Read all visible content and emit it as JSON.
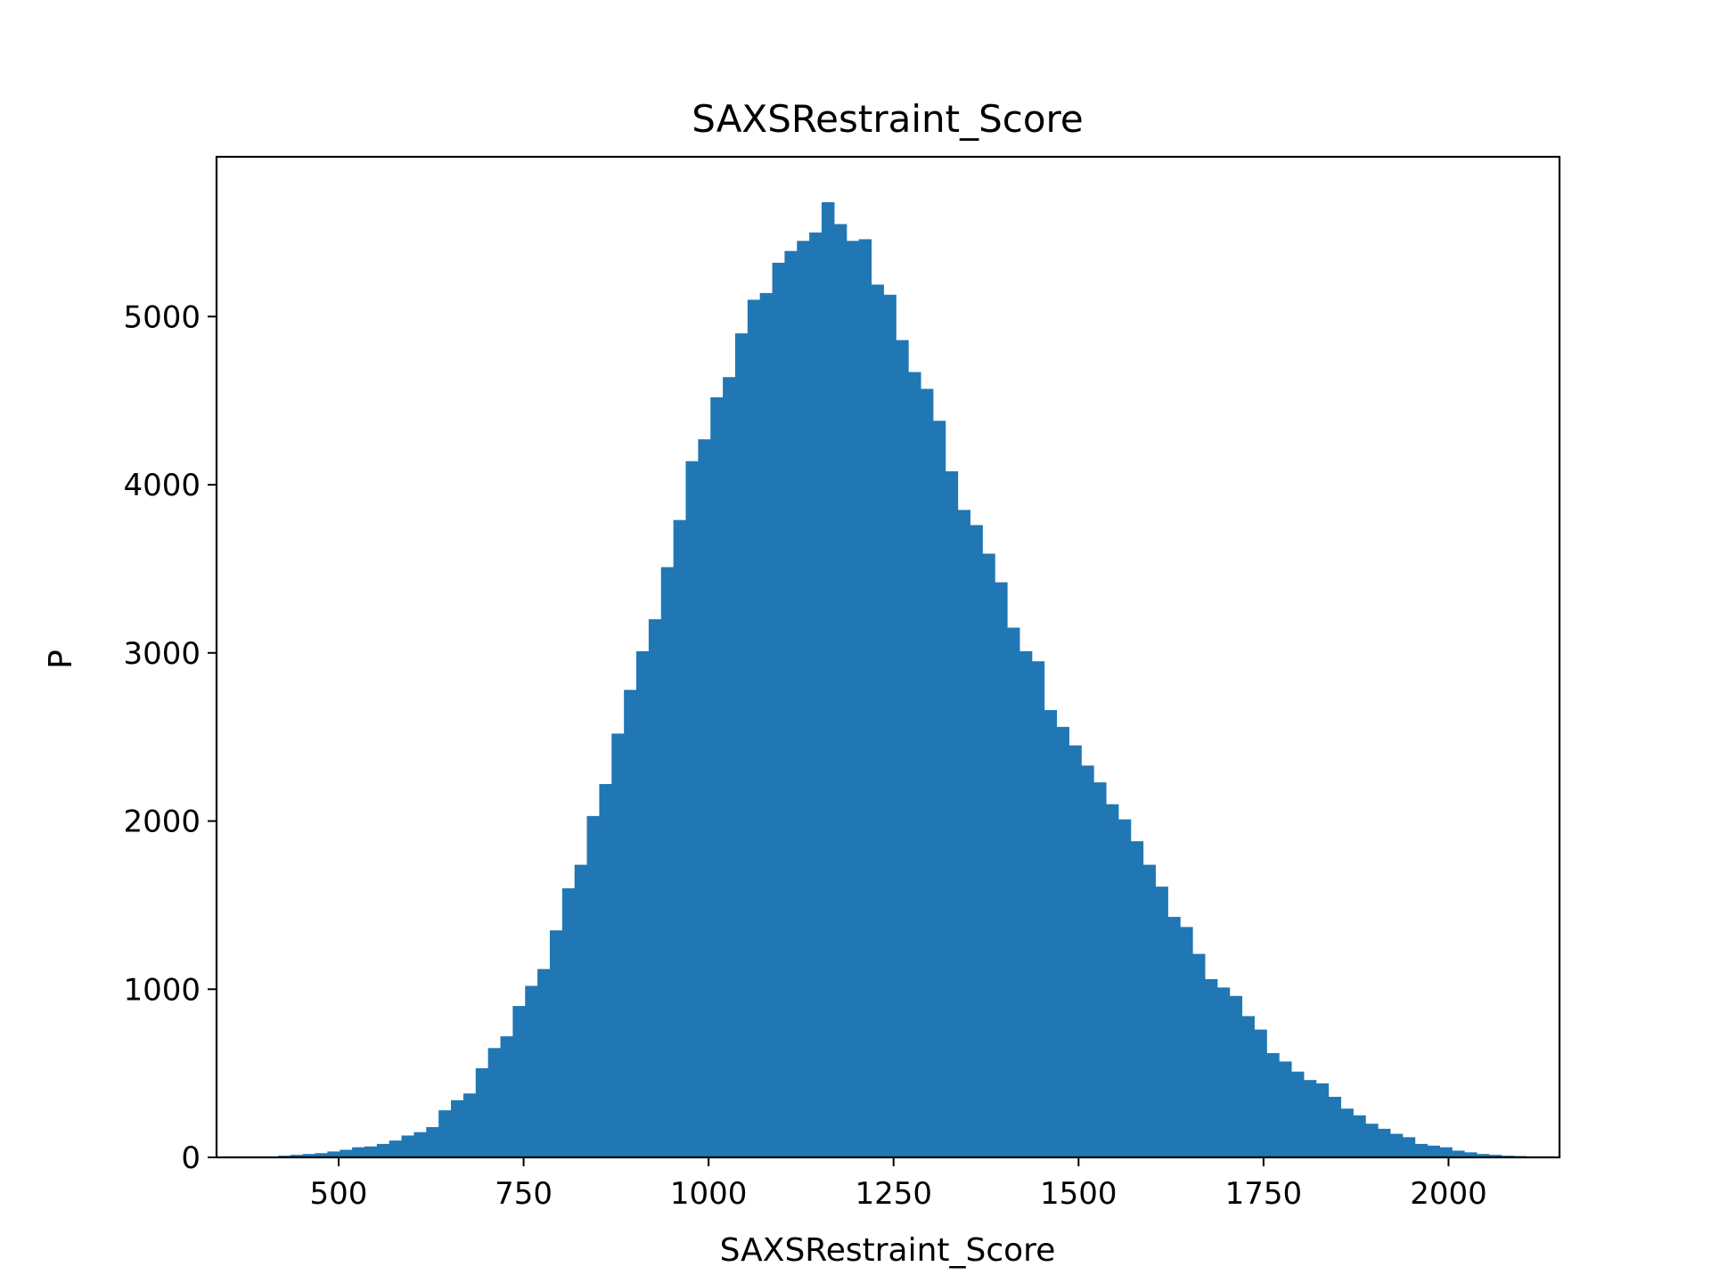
{
  "chart_data": {
    "type": "bar",
    "title": "SAXSRestraint_Score",
    "xlabel": "SAXSRestraint_Score",
    "ylabel": "P",
    "xlim": [
      335,
      2150
    ],
    "ylim": [
      0,
      5950
    ],
    "grid": false,
    "color": "#2077b4",
    "bin_width": 16.7,
    "bin_start": 418,
    "x_ticks": [
      500,
      750,
      1000,
      1250,
      1500,
      1750,
      2000
    ],
    "x_tick_labels": [
      "500",
      "750",
      "1000",
      "1250",
      "1500",
      "1750",
      "2000"
    ],
    "y_ticks": [
      0,
      1000,
      2000,
      3000,
      4000,
      5000
    ],
    "y_tick_labels": [
      "0",
      "1000",
      "2000",
      "3000",
      "4000",
      "5000"
    ],
    "values": [
      10,
      15,
      20,
      25,
      35,
      45,
      60,
      65,
      80,
      100,
      130,
      150,
      180,
      280,
      340,
      380,
      530,
      650,
      720,
      900,
      1020,
      1120,
      1350,
      1600,
      1740,
      2030,
      2220,
      2520,
      2780,
      3010,
      3200,
      3510,
      3790,
      4140,
      4270,
      4520,
      4640,
      4900,
      5100,
      5140,
      5320,
      5390,
      5450,
      5500,
      5680,
      5550,
      5450,
      5460,
      5190,
      5130,
      4860,
      4670,
      4570,
      4380,
      4080,
      3850,
      3760,
      3590,
      3420,
      3150,
      3010,
      2950,
      2660,
      2560,
      2450,
      2330,
      2230,
      2100,
      2010,
      1880,
      1740,
      1610,
      1430,
      1370,
      1210,
      1060,
      1010,
      960,
      840,
      760,
      620,
      570,
      510,
      460,
      440,
      360,
      290,
      250,
      200,
      170,
      140,
      120,
      80,
      70,
      60,
      40,
      30,
      20,
      15,
      10,
      8,
      5,
      3
    ]
  }
}
